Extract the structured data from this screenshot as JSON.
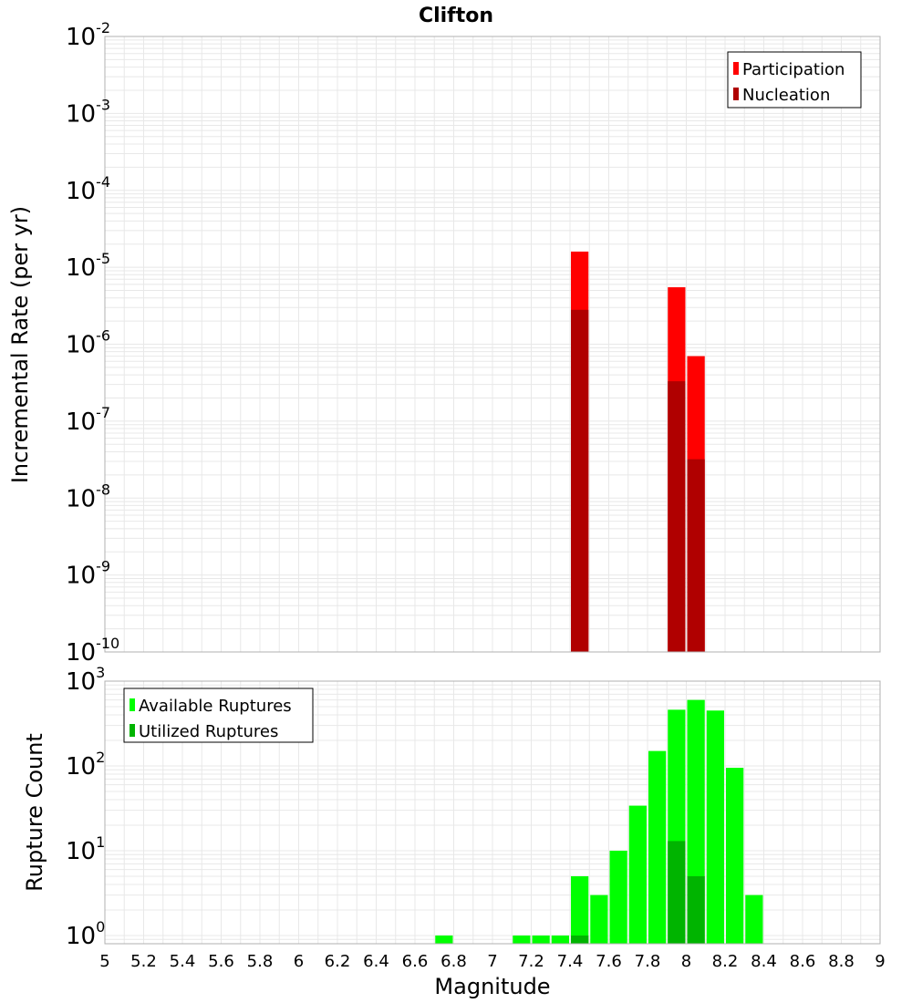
{
  "chart_data": [
    {
      "type": "bar",
      "title": "Clifton",
      "ylabel": "Incremental Rate (per yr)",
      "xlabel": "",
      "yscale": "log",
      "ylim": [
        1e-10,
        0.01
      ],
      "y_tick_exponents": [
        "-10",
        "-9",
        "-8",
        "-7",
        "-6",
        "-5",
        "-4",
        "-3",
        "-2"
      ],
      "xlim": [
        5,
        9
      ],
      "bar_width": 0.1,
      "legend_position": "top-right",
      "series": [
        {
          "name": "Participation",
          "color": "#ff0000",
          "x": [
            7.45,
            7.95,
            8.05
          ],
          "values": [
            1.6e-05,
            5.5e-06,
            7e-07
          ]
        },
        {
          "name": "Nucleation",
          "color": "#b00000",
          "x": [
            7.45,
            7.95,
            8.05
          ],
          "values": [
            2.8e-06,
            3.3e-07,
            3.2e-08
          ]
        }
      ]
    },
    {
      "type": "bar",
      "title": "",
      "ylabel": "Rupture Count",
      "xlabel": "Magnitude",
      "yscale": "log",
      "ylim": [
        0.8,
        1000
      ],
      "y_tick_exponents": [
        "0",
        "1",
        "2",
        "3"
      ],
      "xlim": [
        5,
        9
      ],
      "x_ticks": [
        "5",
        "5.2",
        "5.4",
        "5.6",
        "5.8",
        "6",
        "6.2",
        "6.4",
        "6.6",
        "6.8",
        "7",
        "7.2",
        "7.4",
        "7.6",
        "7.8",
        "8",
        "8.2",
        "8.4",
        "8.6",
        "8.8",
        "9"
      ],
      "bar_width": 0.1,
      "legend_position": "top-left",
      "series": [
        {
          "name": "Available Ruptures",
          "color": "#00ff00",
          "x": [
            6.75,
            7.15,
            7.25,
            7.35,
            7.45,
            7.55,
            7.65,
            7.75,
            7.85,
            7.95,
            8.05,
            8.15,
            8.25,
            8.35
          ],
          "values": [
            1,
            1,
            1,
            1,
            5,
            3,
            10,
            34,
            150,
            460,
            600,
            450,
            95,
            3
          ]
        },
        {
          "name": "Utilized Ruptures",
          "color": "#00b400",
          "x": [
            7.45,
            7.95,
            8.05
          ],
          "values": [
            1,
            13,
            5
          ]
        }
      ]
    }
  ],
  "theme": {
    "grid": "#e8e8e8",
    "frame": "#b0b0b0"
  }
}
